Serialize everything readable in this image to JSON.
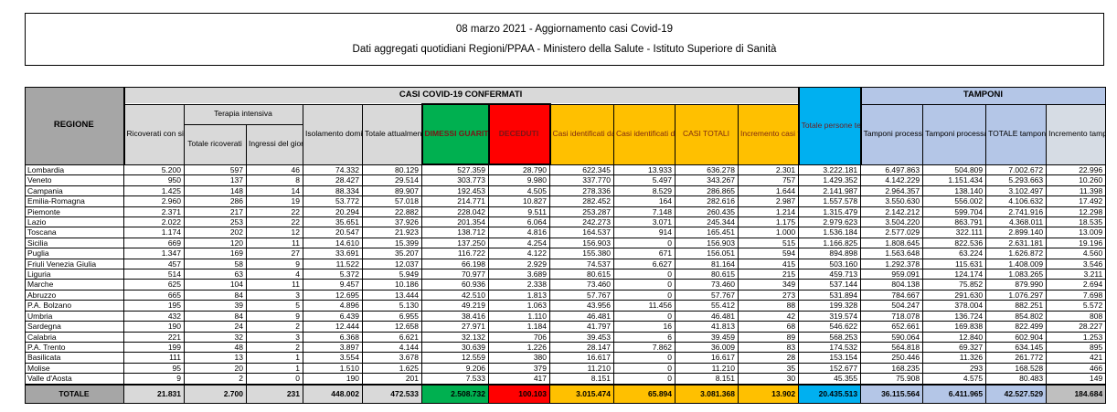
{
  "title": {
    "line1": "08 marzo 2021 - Aggiornamento casi Covid-19",
    "line2": "Dati aggregati quotidiani Regioni/PPAA - Ministero della Salute - Istituto Superiore di Sanità"
  },
  "colors": {
    "green": "#00B050",
    "red": "#FF0000",
    "yellow": "#FFC000",
    "cyan": "#00B0F0",
    "light_blue": "#B4C6E7",
    "gray_blue": "#D6DCE4",
    "header_gray": "#A6A6A6",
    "light_gray": "#D9D9D9"
  },
  "table": {
    "group_headers": {
      "confirmed": "CASI COVID-19 CONFERMATI",
      "swabs": "TAMPONI"
    },
    "columns": {
      "region": "REGIONE",
      "hospitalized": "Ricoverati con sintomi",
      "icu_group": "Terapia intensiva",
      "icu_total": "Totale ricoverati",
      "icu_new": "Ingressi del giorno",
      "home_isolation": "Isolamento domiciliare",
      "current_positive": "Totale attualmente positivi",
      "recovered": "DIMESSI GUARITI",
      "deceased": "DECEDUTI",
      "molecular_cases": "Casi identificati da test molecolare",
      "antigen_cases": "Casi identificati da test antigenico rapido",
      "total_cases": "CASI TOTALI",
      "case_increment": "Incremento casi totali (rispetto al giorno precedente)",
      "people_tested": "Totale persone testate",
      "molecular_swabs": "Tamponi processati con test molecolare",
      "antigen_swabs": "Tamponi processati con test antigenico rapido",
      "total_swabs": "TOTALE tamponi effettuati",
      "swab_increment": "Incremento tamponi totali (rispetto al giorno precedente)"
    },
    "rows": [
      {
        "region": "Lombardia",
        "values": [
          "5.200",
          "597",
          "46",
          "74.332",
          "80.129",
          "527.359",
          "28.790",
          "622.345",
          "13.933",
          "636.278",
          "2.301",
          "3.222.181",
          "6.497.863",
          "504.809",
          "7.002.672",
          "22.996"
        ]
      },
      {
        "region": "Veneto",
        "values": [
          "950",
          "137",
          "8",
          "28.427",
          "29.514",
          "303.773",
          "9.980",
          "337.770",
          "5.497",
          "343.267",
          "757",
          "1.429.352",
          "4.142.229",
          "1.151.434",
          "5.293.663",
          "10.260"
        ]
      },
      {
        "region": "Campania",
        "values": [
          "1.425",
          "148",
          "14",
          "88.334",
          "89.907",
          "192.453",
          "4.505",
          "278.336",
          "8.529",
          "286.865",
          "1.644",
          "2.141.987",
          "2.964.357",
          "138.140",
          "3.102.497",
          "11.398"
        ]
      },
      {
        "region": "Emilia-Romagna",
        "values": [
          "2.960",
          "286",
          "19",
          "53.772",
          "57.018",
          "214.771",
          "10.827",
          "282.452",
          "164",
          "282.616",
          "2.987",
          "1.557.578",
          "3.550.630",
          "556.002",
          "4.106.632",
          "17.492"
        ]
      },
      {
        "region": "Piemonte",
        "values": [
          "2.371",
          "217",
          "22",
          "20.294",
          "22.882",
          "228.042",
          "9.511",
          "253.287",
          "7.148",
          "260.435",
          "1.214",
          "1.315.479",
          "2.142.212",
          "599.704",
          "2.741.916",
          "12.298"
        ]
      },
      {
        "region": "Lazio",
        "values": [
          "2.022",
          "253",
          "22",
          "35.651",
          "37.926",
          "201.354",
          "6.064",
          "242.273",
          "3.071",
          "245.344",
          "1.175",
          "2.979.623",
          "3.504.220",
          "863.791",
          "4.368.011",
          "18.535"
        ]
      },
      {
        "region": "Toscana",
        "values": [
          "1.174",
          "202",
          "12",
          "20.547",
          "21.923",
          "138.712",
          "4.816",
          "164.537",
          "914",
          "165.451",
          "1.000",
          "1.536.184",
          "2.577.029",
          "322.111",
          "2.899.140",
          "13.009"
        ]
      },
      {
        "region": "Sicilia",
        "values": [
          "669",
          "120",
          "11",
          "14.610",
          "15.399",
          "137.250",
          "4.254",
          "156.903",
          "0",
          "156.903",
          "515",
          "1.166.825",
          "1.808.645",
          "822.536",
          "2.631.181",
          "19.196"
        ]
      },
      {
        "region": "Puglia",
        "values": [
          "1.347",
          "169",
          "27",
          "33.691",
          "35.207",
          "116.722",
          "4.122",
          "155.380",
          "671",
          "156.051",
          "594",
          "894.898",
          "1.563.648",
          "63.224",
          "1.626.872",
          "4.560"
        ]
      },
      {
        "region": "Friuli Venezia Giulia",
        "values": [
          "457",
          "58",
          "9",
          "11.522",
          "12.037",
          "66.198",
          "2.929",
          "74.537",
          "6.627",
          "81.164",
          "415",
          "503.160",
          "1.292.378",
          "115.631",
          "1.408.009",
          "3.546"
        ]
      },
      {
        "region": "Liguria",
        "values": [
          "514",
          "63",
          "4",
          "5.372",
          "5.949",
          "70.977",
          "3.689",
          "80.615",
          "0",
          "80.615",
          "215",
          "459.713",
          "959.091",
          "124.174",
          "1.083.265",
          "3.211"
        ]
      },
      {
        "region": "Marche",
        "values": [
          "625",
          "104",
          "11",
          "9.457",
          "10.186",
          "60.936",
          "2.338",
          "73.460",
          "0",
          "73.460",
          "349",
          "537.144",
          "804.138",
          "75.852",
          "879.990",
          "2.694"
        ]
      },
      {
        "region": "Abruzzo",
        "values": [
          "665",
          "84",
          "3",
          "12.695",
          "13.444",
          "42.510",
          "1.813",
          "57.767",
          "0",
          "57.767",
          "273",
          "531.894",
          "784.667",
          "291.630",
          "1.076.297",
          "7.698"
        ]
      },
      {
        "region": "P.A. Bolzano",
        "values": [
          "195",
          "39",
          "5",
          "4.896",
          "5.130",
          "49.219",
          "1.063",
          "43.956",
          "11.456",
          "55.412",
          "88",
          "199.328",
          "504.247",
          "378.004",
          "882.251",
          "5.572"
        ]
      },
      {
        "region": "Umbria",
        "values": [
          "432",
          "84",
          "9",
          "6.439",
          "6.955",
          "38.416",
          "1.110",
          "46.481",
          "0",
          "46.481",
          "42",
          "319.574",
          "718.078",
          "136.724",
          "854.802",
          "808"
        ]
      },
      {
        "region": "Sardegna",
        "values": [
          "190",
          "24",
          "2",
          "12.444",
          "12.658",
          "27.971",
          "1.184",
          "41.797",
          "16",
          "41.813",
          "68",
          "546.622",
          "652.661",
          "169.838",
          "822.499",
          "28.227"
        ]
      },
      {
        "region": "Calabria",
        "values": [
          "221",
          "32",
          "3",
          "6.368",
          "6.621",
          "32.132",
          "706",
          "39.453",
          "6",
          "39.459",
          "89",
          "568.253",
          "590.064",
          "12.840",
          "602.904",
          "1.253"
        ]
      },
      {
        "region": "P.A. Trento",
        "values": [
          "199",
          "48",
          "2",
          "3.897",
          "4.144",
          "30.639",
          "1.226",
          "28.147",
          "7.862",
          "36.009",
          "83",
          "174.532",
          "564.818",
          "69.327",
          "634.145",
          "895"
        ]
      },
      {
        "region": "Basilicata",
        "values": [
          "111",
          "13",
          "1",
          "3.554",
          "3.678",
          "12.559",
          "380",
          "16.617",
          "0",
          "16.617",
          "28",
          "153.154",
          "250.446",
          "11.326",
          "261.772",
          "421"
        ]
      },
      {
        "region": "Molise",
        "values": [
          "95",
          "20",
          "1",
          "1.510",
          "1.625",
          "9.206",
          "379",
          "11.210",
          "0",
          "11.210",
          "35",
          "152.677",
          "168.235",
          "293",
          "168.528",
          "466"
        ]
      },
      {
        "region": "Valle d'Aosta",
        "values": [
          "9",
          "2",
          "0",
          "190",
          "201",
          "7.533",
          "417",
          "8.151",
          "0",
          "8.151",
          "30",
          "45.355",
          "75.908",
          "4.575",
          "80.483",
          "149"
        ]
      }
    ],
    "total_row": {
      "label": "TOTALE",
      "values": [
        "21.831",
        "2.700",
        "231",
        "448.002",
        "472.533",
        "2.508.732",
        "100.103",
        "3.015.474",
        "65.894",
        "3.081.368",
        "13.902",
        "20.435.513",
        "36.115.564",
        "6.411.965",
        "42.527.529",
        "184.684"
      ]
    }
  }
}
